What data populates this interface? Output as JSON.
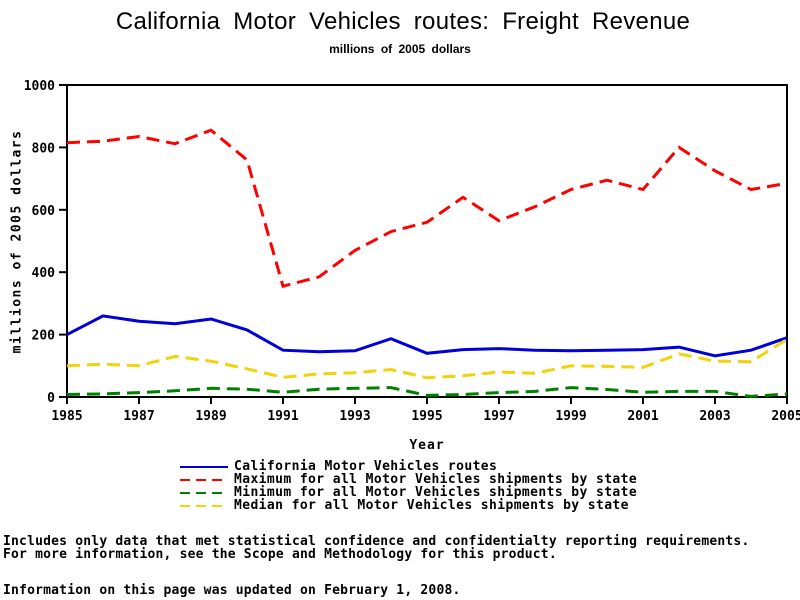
{
  "chart_data": {
    "type": "line",
    "title": "California Motor Vehicles routes: Freight Revenue",
    "subtitle": "millions of 2005 dollars",
    "xlabel": "Year",
    "ylabel": "millions of 2005 dollars",
    "xlim": [
      1985,
      2005
    ],
    "ylim": [
      0,
      1000
    ],
    "x_ticks": [
      1985,
      1987,
      1989,
      1991,
      1993,
      1995,
      1997,
      1999,
      2001,
      2003,
      2005
    ],
    "y_ticks": [
      0,
      200,
      400,
      600,
      800,
      1000
    ],
    "grid": false,
    "legend_position": "bottom",
    "frame_color": "#000000",
    "x": [
      1985,
      1986,
      1987,
      1988,
      1989,
      1990,
      1991,
      1992,
      1993,
      1994,
      1995,
      1996,
      1997,
      1998,
      1999,
      2000,
      2001,
      2002,
      2003,
      2004,
      2005
    ],
    "series": [
      {
        "name": "california-routes",
        "label": "California Motor Vehicles routes",
        "color": "#0000d8",
        "style": "solid",
        "values": [
          200,
          260,
          243,
          235,
          250,
          215,
          150,
          145,
          148,
          187,
          140,
          152,
          155,
          150,
          148,
          150,
          152,
          160,
          132,
          150,
          190
        ]
      },
      {
        "name": "maximum-by-state",
        "label": "Maximum for all Motor Vehicles shipments by state",
        "color": "#ff0000",
        "style": "dashed",
        "values": [
          815,
          820,
          835,
          812,
          855,
          760,
          355,
          385,
          470,
          530,
          560,
          640,
          565,
          610,
          665,
          695,
          665,
          800,
          725,
          665,
          685
        ]
      },
      {
        "name": "minimum-by-state",
        "label": "Minimum for all Motor Vehicles shipments by state",
        "color": "#008000",
        "style": "dashed",
        "values": [
          8,
          10,
          14,
          20,
          28,
          25,
          15,
          25,
          28,
          30,
          5,
          8,
          14,
          18,
          30,
          24,
          15,
          18,
          18,
          2,
          10
        ]
      },
      {
        "name": "median-by-state",
        "label": "Median for all Motor Vehicles shipments by state",
        "color": "#f2d20a",
        "style": "dashed",
        "values": [
          100,
          105,
          100,
          130,
          115,
          90,
          63,
          74,
          78,
          88,
          62,
          68,
          80,
          76,
          100,
          98,
          95,
          138,
          115,
          113,
          185
        ]
      }
    ]
  },
  "notes": {
    "line1": "Includes only data that met statistical confidence and confidentialty reporting requirements.",
    "line2": "For more information, see the Scope and Methodology for this product.",
    "line3": "Information on this page was updated on February 1, 2008."
  }
}
